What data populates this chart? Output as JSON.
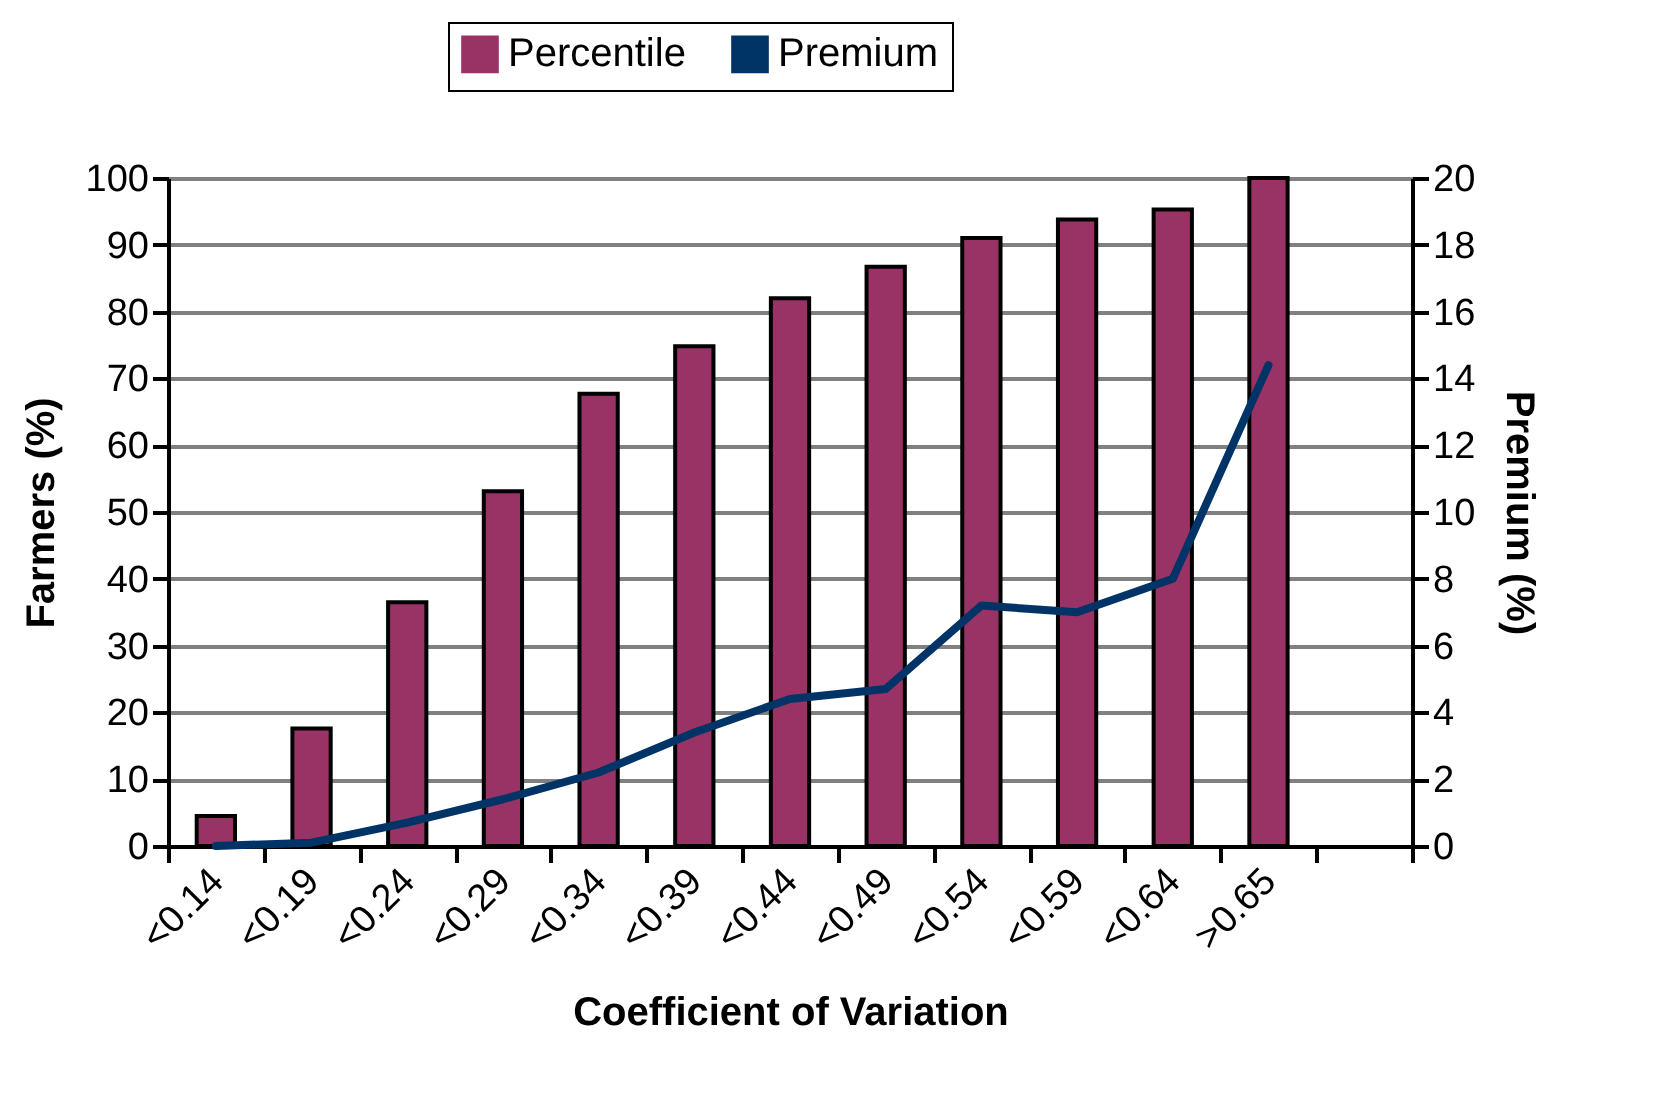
{
  "chart_data": {
    "type": "bar",
    "xlabel": "Coefficient of Variation",
    "ylabel": "Farmers (%)",
    "y2label": "Premium (%)",
    "categories": [
      "<0.14",
      "<0.19",
      "<0.24",
      "<0.29",
      "<0.34",
      "<0.39",
      "<0.44",
      "<0.49",
      "<0.54",
      "<0.59",
      "<0.64",
      ">0.65",
      null
    ],
    "series": [
      {
        "name": "Percentile",
        "color": "#993366",
        "values": [
          4.5,
          17.6,
          36.5,
          53.1,
          67.7,
          74.8,
          82,
          86.7,
          91,
          93.8,
          95.3,
          100,
          null
        ]
      },
      {
        "name": "Premium",
        "type": "line",
        "axis": "y2",
        "color": "#003366",
        "values": [
          0,
          0.1,
          0.7,
          1.4,
          2.2,
          3.4,
          4.4,
          4.7,
          7.2,
          7.0,
          8.0,
          14.4,
          null
        ]
      }
    ],
    "ylim": [
      0,
      100
    ],
    "yticks": [
      0,
      10,
      20,
      30,
      40,
      50,
      60,
      70,
      80,
      90,
      100
    ],
    "y2lim": [
      0,
      20
    ],
    "y2ticks": [
      0,
      2,
      4,
      6,
      8,
      10,
      12,
      14,
      16,
      18,
      20
    ],
    "grid": "y",
    "legend": "top"
  }
}
